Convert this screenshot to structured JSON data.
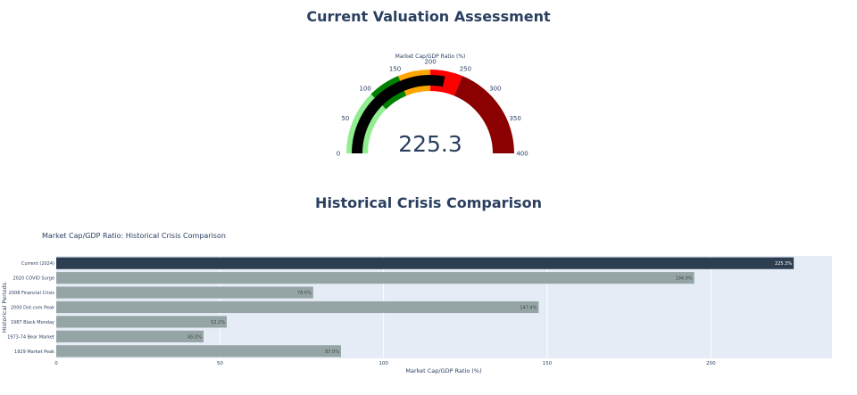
{
  "sections": {
    "valuation_title": "Current Valuation Assessment",
    "history_title": "Historical Crisis Comparison"
  },
  "chart_data": [
    {
      "type": "gauge",
      "title": "Market Cap/GDP Ratio (%)",
      "value": 225.3,
      "value_text": "225.3",
      "range": [
        0,
        400
      ],
      "ticks": [
        "0",
        "50",
        "100",
        "150",
        "200",
        "250",
        "300",
        "350",
        "400"
      ],
      "tick_values": [
        0,
        50,
        100,
        150,
        200,
        250,
        300,
        350,
        400
      ],
      "steps": [
        {
          "range": [
            0,
            100
          ],
          "color": "#90ee90"
        },
        {
          "range": [
            100,
            150
          ],
          "color": "#008000"
        },
        {
          "range": [
            150,
            200
          ],
          "color": "#ffa500"
        },
        {
          "range": [
            200,
            250
          ],
          "color": "#ff0000"
        },
        {
          "range": [
            250,
            400
          ],
          "color": "#8b0000"
        }
      ],
      "bar_color": "#000000",
      "threshold": 225.3
    },
    {
      "type": "bar",
      "orientation": "horizontal",
      "title": "Market Cap/GDP Ratio: Historical Crisis Comparison",
      "xlabel": "Market Cap/GDP Ratio (%)",
      "ylabel": "Historical Periods",
      "xlim": [
        0,
        237
      ],
      "xticks": [
        0,
        50,
        100,
        150,
        200
      ],
      "xtick_labels": [
        "0",
        "50",
        "100",
        "150",
        "200"
      ],
      "categories": [
        "Current (2024)",
        "2020 COVID Surge",
        "2008 Financial Crisis",
        "2000 Dot-com Peak",
        "1987 Black Monday",
        "1973-74 Bear Market",
        "1929 Market Peak"
      ],
      "values": [
        225.3,
        194.9,
        78.5,
        147.4,
        52.1,
        45.0,
        87.0
      ],
      "value_labels": [
        "225.3%",
        "194.9%",
        "78.5%",
        "147.4%",
        "52.1%",
        "45.0%",
        "87.0%"
      ],
      "colors": [
        "#2c3e50",
        "#95a5a6",
        "#95a5a6",
        "#95a5a6",
        "#95a5a6",
        "#95a5a6",
        "#95a5a6"
      ],
      "grid": true
    }
  ]
}
